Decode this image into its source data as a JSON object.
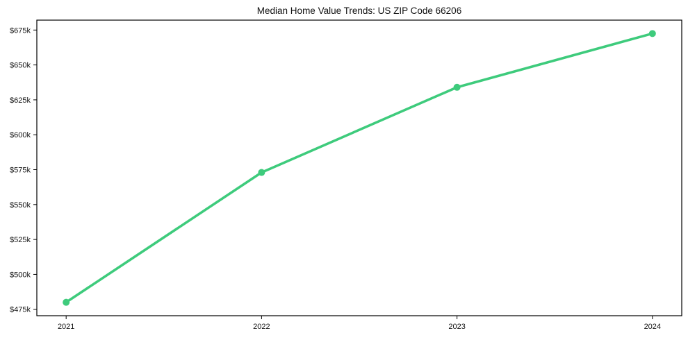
{
  "chart_data": {
    "type": "line",
    "title": "Median Home Value Trends: US ZIP Code 66206",
    "x": [
      2021,
      2022,
      2023,
      2024
    ],
    "x_tick_labels": [
      "2021",
      "2022",
      "2023",
      "2024"
    ],
    "series": [
      {
        "name": "Median Home Value",
        "values": [
          480000,
          573000,
          634000,
          672500
        ]
      }
    ],
    "y_ticks": [
      475000,
      500000,
      525000,
      550000,
      575000,
      600000,
      625000,
      650000,
      675000
    ],
    "y_tick_labels": [
      "$475k",
      "$500k",
      "$525k",
      "$550k",
      "$575k",
      "$600k",
      "$625k",
      "$650k",
      "$675k"
    ],
    "xlabel": "",
    "ylabel": "",
    "xlim": [
      2020.85,
      2024.15
    ],
    "ylim": [
      470400,
      682100
    ],
    "grid": false,
    "legend": "none",
    "line_color": "#3ecb7c",
    "marker": "circle",
    "axis_color": "#000000",
    "background_color": "#ffffff"
  }
}
